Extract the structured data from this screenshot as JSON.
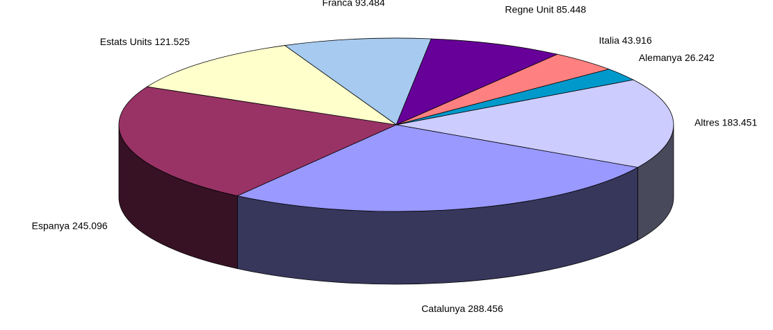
{
  "chart_data": {
    "type": "pie3d",
    "categories": [
      "Franca",
      "Regne Unit",
      "Italia",
      "Alemanya",
      "Altres",
      "Catalunya",
      "Espanya",
      "Estats Units"
    ],
    "values": [
      93.484,
      85.448,
      43.916,
      26.242,
      183.451,
      288.456,
      245.096,
      121.525
    ],
    "colors": [
      "#a6caf0",
      "#660099",
      "#ff8080",
      "#0099cc",
      "#ccccff",
      "#9999ff",
      "#993366",
      "#ffffcc"
    ]
  }
}
